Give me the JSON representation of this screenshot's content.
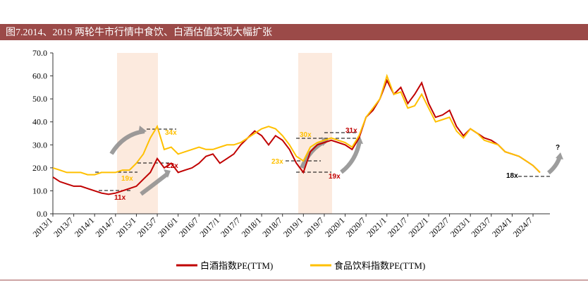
{
  "chart_data": {
    "type": "line",
    "title": "图7.2014、2019 两轮牛市行情中食饮、白酒估值实现大幅扩张",
    "categories": [
      "2013/1",
      null,
      null,
      "2013/7",
      null,
      null,
      "2014/1",
      null,
      null,
      "2014/7",
      null,
      null,
      "2015/1",
      null,
      null,
      "2015/7",
      null,
      null,
      "2016/1",
      null,
      null,
      "2016/7",
      null,
      null,
      "2017/1",
      null,
      null,
      "2017/7",
      null,
      null,
      "2018/1",
      null,
      null,
      "2018/7",
      null,
      null,
      "2019/1",
      null,
      null,
      "2019/7",
      null,
      null,
      "2020/1",
      null,
      null,
      "2020/7",
      null,
      null,
      "2021/1",
      null,
      null,
      "2021/7",
      null,
      null,
      "2022/1",
      null,
      null,
      "2022/7",
      null,
      null,
      "2023/1",
      null,
      null,
      "2023/7",
      null,
      null,
      "2024/1",
      null,
      null,
      "2024/7",
      null
    ],
    "series": [
      {
        "name": "白酒指数PE(TTM)",
        "color": "#c00000",
        "values": [
          16,
          14,
          13,
          12,
          12,
          11,
          10,
          9,
          8.5,
          9,
          10,
          11,
          12,
          15,
          18,
          24,
          20,
          22,
          18,
          19,
          20,
          22,
          25,
          26,
          22,
          24,
          26,
          30,
          33,
          36,
          34,
          30,
          34,
          32,
          28,
          22,
          18,
          27,
          30,
          31,
          32,
          31,
          30,
          28,
          33,
          42,
          45,
          50,
          58,
          52,
          55,
          48,
          52,
          57,
          48,
          42,
          43,
          45,
          38,
          34,
          37,
          35,
          33,
          32,
          30,
          27,
          26,
          25,
          23,
          21,
          18
        ]
      },
      {
        "name": "食品饮料指数PE(TTM)",
        "color": "#ffc000",
        "values": [
          20,
          19,
          18,
          18,
          18,
          17,
          17,
          18,
          18,
          18,
          19,
          19,
          22,
          26,
          33,
          38,
          28,
          29,
          26,
          27,
          28,
          29,
          28,
          28,
          29,
          30,
          30,
          31,
          33,
          35,
          37,
          38,
          37,
          34,
          30,
          25,
          23,
          29,
          31,
          32,
          33,
          32,
          31,
          29,
          34,
          42,
          46,
          50,
          60,
          52,
          53,
          46,
          47,
          52,
          46,
          40,
          41,
          42,
          36,
          33,
          37,
          35,
          32,
          31,
          30,
          27,
          26,
          25,
          23,
          21,
          18
        ]
      }
    ],
    "ylim": [
      0,
      70
    ],
    "yticks": [
      {
        "value": 0,
        "label": "0.0"
      },
      {
        "value": 10,
        "label": "10.0"
      },
      {
        "value": 20,
        "label": "20.0"
      },
      {
        "value": 30,
        "label": "30.0"
      },
      {
        "value": 40,
        "label": "40.0"
      },
      {
        "value": 50,
        "label": "50.0"
      },
      {
        "value": 60,
        "label": "60.0"
      },
      {
        "value": 70,
        "label": "70.0"
      }
    ],
    "annotations": [
      "34x",
      "22x",
      "11x",
      "19x",
      "30x",
      "23x",
      "31x",
      "19x",
      "18x",
      "?"
    ]
  }
}
